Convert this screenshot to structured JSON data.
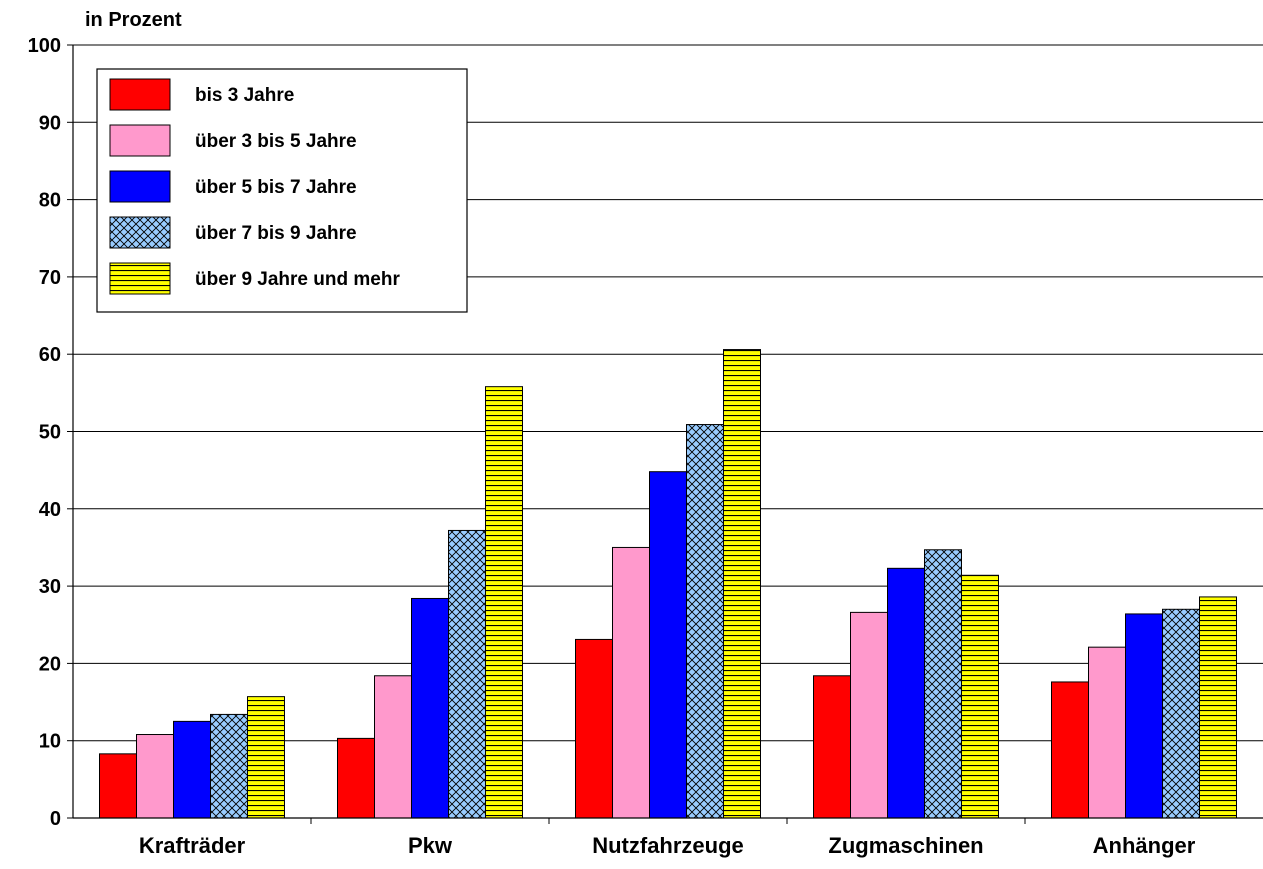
{
  "chart_data": {
    "type": "bar",
    "ylabel": "in Prozent",
    "xlabel": "",
    "ylim": [
      0,
      100
    ],
    "yticks": [
      0,
      10,
      20,
      30,
      40,
      50,
      60,
      70,
      80,
      90,
      100
    ],
    "grid": true,
    "legend_position": "top-left",
    "categories": [
      "Krafträder",
      "Pkw",
      "Nutzfahrzeuge",
      "Zugmaschinen",
      "Anhänger"
    ],
    "series": [
      {
        "name": "bis 3 Jahre",
        "color": "#ff0000",
        "pattern": "solid",
        "values": [
          8.3,
          10.3,
          23.1,
          18.4,
          17.6
        ]
      },
      {
        "name": "über 3 bis 5 Jahre",
        "color": "#ff99cc",
        "pattern": "solid",
        "values": [
          10.8,
          18.4,
          35.0,
          26.6,
          22.1
        ]
      },
      {
        "name": "über 5 bis 7 Jahre",
        "color": "#0000ff",
        "pattern": "solid",
        "values": [
          12.5,
          28.4,
          44.8,
          32.3,
          26.4
        ]
      },
      {
        "name": "über 7 bis 9 Jahre",
        "color": "#99ccff",
        "pattern": "crosshatch",
        "values": [
          13.4,
          37.2,
          50.9,
          34.7,
          27.0
        ]
      },
      {
        "name": "über 9 Jahre und mehr",
        "color": "#ffff00",
        "pattern": "horizontal-stripes",
        "values": [
          15.7,
          55.8,
          60.6,
          31.4,
          28.6
        ]
      }
    ]
  }
}
